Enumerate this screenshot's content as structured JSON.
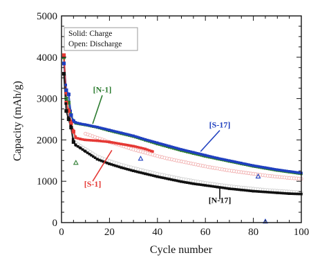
{
  "chart_data": {
    "type": "scatter",
    "xlabel": "Cycle number",
    "ylabel": "Capacity (mAh/g)",
    "xlim": [
      0,
      100
    ],
    "ylim": [
      0,
      5000
    ],
    "xticks": [
      "0",
      "20",
      "40",
      "60",
      "80",
      "100"
    ],
    "yticks": [
      "0",
      "1000",
      "2000",
      "3000",
      "4000",
      "5000"
    ],
    "grid": false,
    "legend_box": {
      "position": "top-left",
      "lines": [
        "Solid: Charge",
        "Open: Discharge"
      ]
    },
    "series": [
      {
        "name": "[N-1]",
        "color": "#2e7d32",
        "x": [
          1,
          2,
          3,
          4,
          5,
          6,
          8,
          10,
          15,
          20,
          25,
          30,
          35,
          40,
          45,
          50,
          55,
          60,
          65,
          70,
          75,
          80,
          85,
          90,
          95,
          100
        ],
        "y": [
          4000,
          3000,
          2900,
          2600,
          2450,
          2400,
          2380,
          2360,
          2300,
          2220,
          2150,
          2080,
          1990,
          1900,
          1820,
          1740,
          1670,
          1600,
          1540,
          1480,
          1420,
          1360,
          1310,
          1260,
          1220,
          1180
        ]
      },
      {
        "name": "[S-17]",
        "color": "#1f3fbf",
        "x": [
          1,
          2,
          3,
          4,
          5,
          6,
          8,
          10,
          15,
          20,
          25,
          30,
          35,
          40,
          45,
          50,
          55,
          60,
          65,
          70,
          75,
          80,
          85,
          90,
          95,
          100
        ],
        "y": [
          3850,
          3200,
          3100,
          2600,
          2450,
          2420,
          2390,
          2370,
          2310,
          2240,
          2170,
          2100,
          2010,
          1930,
          1850,
          1770,
          1700,
          1630,
          1560,
          1500,
          1440,
          1380,
          1330,
          1280,
          1240,
          1200
        ]
      },
      {
        "name": "[S-1]",
        "color": "#e53935",
        "x": [
          1,
          2,
          3,
          4,
          5,
          6,
          8,
          10,
          15,
          20,
          25,
          30,
          35,
          38
        ],
        "y": [
          4050,
          2900,
          2700,
          2400,
          2200,
          2050,
          2020,
          2000,
          1980,
          1950,
          1900,
          1850,
          1780,
          1720
        ]
      },
      {
        "name": "[N-17]",
        "color": "#111111",
        "x": [
          1,
          2,
          3,
          4,
          5,
          6,
          8,
          10,
          15,
          20,
          25,
          30,
          35,
          40,
          45,
          50,
          55,
          60,
          65,
          70,
          75,
          80,
          85,
          90,
          95,
          100
        ],
        "y": [
          3600,
          2700,
          2500,
          2300,
          1950,
          1870,
          1800,
          1720,
          1530,
          1420,
          1330,
          1250,
          1180,
          1110,
          1050,
          990,
          940,
          900,
          860,
          820,
          790,
          760,
          740,
          720,
          700,
          690
        ]
      },
      {
        "name": "discharge",
        "color": "#c8c8c8",
        "x": [
          6,
          8,
          10,
          15,
          20,
          25,
          30,
          35,
          40,
          45,
          50,
          55,
          60,
          65,
          70,
          75,
          80,
          85,
          90,
          95,
          100
        ],
        "y": [
          1930,
          1850,
          1780,
          1600,
          1490,
          1400,
          1320,
          1250,
          1180,
          1120,
          1060,
          1010,
          960,
          920,
          880,
          850,
          820,
          790,
          770,
          750,
          730
        ]
      },
      {
        "name": "discharge",
        "color": "#f0a8a8",
        "x": [
          10,
          15,
          20,
          25,
          30,
          35,
          40,
          45,
          50,
          55,
          60,
          65,
          70,
          75,
          80,
          85,
          90,
          95,
          100
        ],
        "y": [
          2150,
          2050,
          1950,
          1860,
          1770,
          1690,
          1610,
          1540,
          1480,
          1420,
          1360,
          1310,
          1260,
          1220,
          1180,
          1140,
          1110,
          1080,
          1060
        ]
      }
    ],
    "outliers": [
      {
        "x": 6,
        "y": 1450,
        "color": "#2e7d32"
      },
      {
        "x": 33,
        "y": 1550,
        "color": "#1f3fbf"
      },
      {
        "x": 82,
        "y": 1120,
        "color": "#1f3fbf"
      },
      {
        "x": 85,
        "y": 30,
        "color": "#1f3fbf"
      }
    ],
    "annotations": [
      {
        "text": "[N-1]",
        "x": 17,
        "y": 3150,
        "color": "#2e7d32"
      },
      {
        "text": "[S-17]",
        "x": 66,
        "y": 2300,
        "color": "#1f3fbf"
      },
      {
        "text": "[S-1]",
        "x": 13,
        "y": 870,
        "color": "#e53935"
      },
      {
        "text": "[N-17]",
        "x": 66,
        "y": 480,
        "color": "#111111"
      }
    ]
  }
}
